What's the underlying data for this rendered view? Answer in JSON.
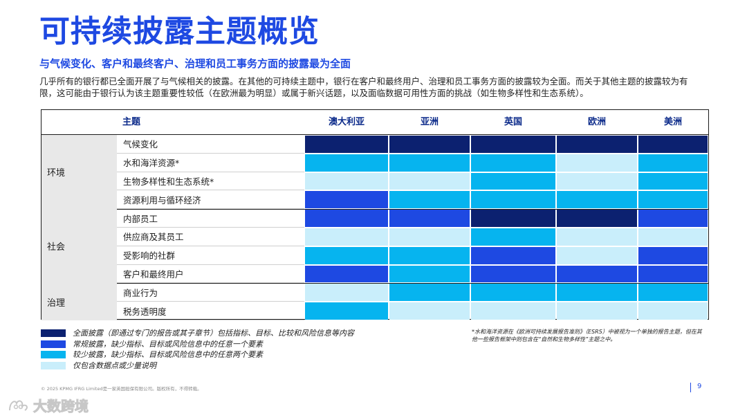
{
  "title": "可持续披露主题概览",
  "subtitle": "与气候变化、客户和最终客户、治理和员工事务方面的披露最为全面",
  "intro": "几乎所有的银行都已全面开展了与气候相关的披露。在其他的可持续主题中，银行在客户和最终用户、治理和员工事务方面的披露较为全面。而关于其他主题的披露较为有限，这可能由于银行认为该主题重要性较低（在欧洲最为明显）或属于新兴话题，以及面临数据可用性方面的挑战（如生物多样性和生态系统）。",
  "table": {
    "topic_header": "主题",
    "regions": [
      "澳大利亚",
      "亚洲",
      "英国",
      "欧洲",
      "美洲"
    ],
    "groups": [
      {
        "name": "环境",
        "rows": [
          {
            "topic": "气候变化",
            "levels": [
              4,
              4,
              4,
              4,
              4
            ]
          },
          {
            "topic": "水和海洋资源*",
            "levels": [
              2,
              2,
              2,
              1,
              2
            ]
          },
          {
            "topic": "生物多样性和生态系统*",
            "levels": [
              1,
              1,
              2,
              1,
              2
            ]
          },
          {
            "topic": "资源利用与循环经济",
            "levels": [
              3,
              2,
              2,
              2,
              2
            ]
          }
        ]
      },
      {
        "name": "社会",
        "rows": [
          {
            "topic": "内部员工",
            "levels": [
              3,
              3,
              4,
              4,
              3
            ]
          },
          {
            "topic": "供应商及其员工",
            "levels": [
              1,
              1,
              2,
              1,
              1
            ]
          },
          {
            "topic": "受影响的社群",
            "levels": [
              2,
              2,
              3,
              1,
              3
            ]
          },
          {
            "topic": "客户和最终用户",
            "levels": [
              3,
              2,
              3,
              3,
              3
            ]
          }
        ]
      },
      {
        "name": "治理",
        "rows": [
          {
            "topic": "商业行为",
            "levels": [
              1,
              2,
              2,
              2,
              2
            ]
          },
          {
            "topic": "税务透明度",
            "levels": [
              2,
              1,
              1,
              1,
              1
            ]
          }
        ]
      }
    ]
  },
  "legend": [
    {
      "level": 4,
      "label": "全面披露（即通过专门的报告或其子章节）包括指标、目标、比较和风险信息等内容"
    },
    {
      "level": 3,
      "label": "常规披露，缺少指标、目标或风险信息中的任意一个要素"
    },
    {
      "level": 2,
      "label": "较少披露，缺少指标、目标或风险信息中的任意两个要素"
    },
    {
      "level": 1,
      "label": "仅包含数据点或少量说明"
    }
  ],
  "colors": {
    "1": "#c9eefb",
    "2": "#06b4ef",
    "3": "#1e49e2",
    "4": "#0c2170"
  },
  "footnote": "*水和海洋资源在《欧洲可持续发展报告准则》（ESRS）中被视为一个单独的报告主题，但在其他一些报告框架中则包含在“自然和生物多样性”主题之中。",
  "footer": "© 2025 KPMG IFRG Limited是一家英国担保有限公司。版权所有，不得转载。",
  "page_number": "9",
  "watermark": "大数跨境"
}
